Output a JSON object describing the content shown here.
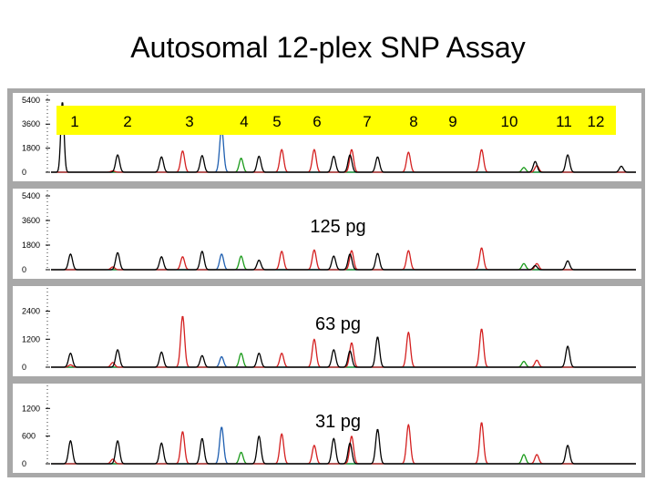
{
  "title": "Autosomal 12-plex SNP Assay",
  "colors": {
    "black": "#000000",
    "red": "#d42020",
    "green": "#1a9a1a",
    "blue": "#1f5fb0",
    "axis_blue": "#2255cc",
    "lane_highlight": "#ffff00",
    "panel_bg": "#a8a8a8"
  },
  "chart_data": {
    "type": "line",
    "x_unit": "relative electrophoretic position (0-100)",
    "locus_labels": [
      "1",
      "2",
      "3",
      "4",
      "5",
      "6",
      "7",
      "8",
      "9",
      "10",
      "11",
      "12"
    ],
    "panels": [
      {
        "label": "",
        "yticks": [
          0,
          1800,
          3600,
          5400
        ],
        "ymax": 5800,
        "series": [
          {
            "color": "black",
            "peaks": [
              [
                3.5,
                5300,
                0.5
              ],
              [
                20.5,
                1300,
                0.6
              ],
              [
                34,
                1150,
                0.6
              ],
              [
                46.5,
                1250,
                0.6
              ],
              [
                64,
                1200,
                0.6
              ],
              [
                87,
                1200,
                0.6
              ],
              [
                92,
                1300,
                0.6
              ],
              [
                100.5,
                1150,
                0.6
              ],
              [
                149,
                800,
                0.6
              ],
              [
                159,
                1300,
                0.6
              ],
              [
                175.5,
                450,
                0.6
              ]
            ]
          },
          {
            "color": "red",
            "peaks": [
              [
                19,
                100,
                0.6
              ],
              [
                40.5,
                1600,
                0.6
              ],
              [
                71,
                1700,
                0.6
              ],
              [
                81,
                1700,
                0.6
              ],
              [
                92.5,
                1700,
                0.6
              ],
              [
                110,
                1500,
                0.6
              ],
              [
                132.5,
                1700,
                0.6
              ],
              [
                149.5,
                500,
                0.6
              ]
            ]
          },
          {
            "color": "green",
            "peaks": [
              [
                58.5,
                1050,
                0.6
              ],
              [
                145.5,
                350,
                0.6
              ]
            ]
          },
          {
            "color": "blue",
            "peaks": [
              [
                52.5,
                3300,
                0.6
              ]
            ]
          }
        ]
      },
      {
        "label": "125 pg",
        "yticks": [
          0,
          1800,
          3600,
          5400
        ],
        "ymax": 5800,
        "series": [
          {
            "color": "black",
            "peaks": [
              [
                6,
                1150,
                0.6
              ],
              [
                20.5,
                1250,
                0.6
              ],
              [
                34,
                950,
                0.6
              ],
              [
                46.5,
                1350,
                0.6
              ],
              [
                64,
                700,
                0.6
              ],
              [
                87,
                1000,
                0.6
              ],
              [
                92,
                1150,
                0.6
              ],
              [
                100.5,
                1200,
                0.6
              ],
              [
                149,
                300,
                0.6
              ],
              [
                159,
                650,
                0.6
              ]
            ]
          },
          {
            "color": "red",
            "peaks": [
              [
                19,
                200,
                0.6
              ],
              [
                40.5,
                950,
                0.6
              ],
              [
                71,
                1350,
                0.6
              ],
              [
                81,
                1450,
                0.6
              ],
              [
                92.5,
                1400,
                0.6
              ],
              [
                110,
                1400,
                0.6
              ],
              [
                132.5,
                1600,
                0.6
              ],
              [
                149.5,
                450,
                0.6
              ]
            ]
          },
          {
            "color": "green",
            "peaks": [
              [
                58.5,
                1000,
                0.6
              ],
              [
                145.5,
                450,
                0.6
              ]
            ]
          },
          {
            "color": "blue",
            "peaks": [
              [
                52.5,
                1150,
                0.6
              ]
            ]
          }
        ]
      },
      {
        "label": "63 pg",
        "yticks": [
          0,
          1200,
          2400
        ],
        "ymax": 3400,
        "series": [
          {
            "color": "black",
            "peaks": [
              [
                6,
                600,
                0.6
              ],
              [
                20.5,
                750,
                0.6
              ],
              [
                34,
                650,
                0.6
              ],
              [
                46.5,
                500,
                0.6
              ],
              [
                64,
                600,
                0.6
              ],
              [
                87,
                750,
                0.6
              ],
              [
                92,
                700,
                0.6
              ],
              [
                100.5,
                1300,
                0.6
              ],
              [
                159,
                900,
                0.6
              ]
            ]
          },
          {
            "color": "red",
            "peaks": [
              [
                6,
                100,
                0.6
              ],
              [
                19,
                200,
                0.6
              ],
              [
                40.5,
                2200,
                0.6
              ],
              [
                71,
                600,
                0.6
              ],
              [
                81,
                1200,
                0.6
              ],
              [
                92.5,
                1050,
                0.6
              ],
              [
                110,
                1500,
                0.6
              ],
              [
                132.5,
                1650,
                0.6
              ],
              [
                149.5,
                300,
                0.6
              ]
            ]
          },
          {
            "color": "green",
            "peaks": [
              [
                58.5,
                600,
                0.6
              ],
              [
                145.5,
                250,
                0.6
              ]
            ]
          },
          {
            "color": "blue",
            "peaks": [
              [
                52.5,
                450,
                0.6
              ]
            ]
          }
        ]
      },
      {
        "label": "31 pg",
        "yticks": [
          0,
          600,
          1200
        ],
        "ymax": 1700,
        "series": [
          {
            "color": "black",
            "peaks": [
              [
                6,
                500,
                0.6
              ],
              [
                20.5,
                500,
                0.6
              ],
              [
                34,
                450,
                0.6
              ],
              [
                46.5,
                550,
                0.6
              ],
              [
                64,
                600,
                0.6
              ],
              [
                87,
                550,
                0.6
              ],
              [
                92,
                450,
                0.6
              ],
              [
                100.5,
                750,
                0.6
              ],
              [
                159,
                400,
                0.6
              ]
            ]
          },
          {
            "color": "red",
            "peaks": [
              [
                19,
                100,
                0.6
              ],
              [
                40.5,
                700,
                0.6
              ],
              [
                71,
                650,
                0.6
              ],
              [
                81,
                400,
                0.6
              ],
              [
                92.5,
                600,
                0.6
              ],
              [
                110,
                850,
                0.6
              ],
              [
                132.5,
                900,
                0.6
              ],
              [
                149.5,
                200,
                0.6
              ]
            ]
          },
          {
            "color": "green",
            "peaks": [
              [
                58.5,
                250,
                0.6
              ],
              [
                145.5,
                200,
                0.6
              ]
            ]
          },
          {
            "color": "blue",
            "peaks": [
              [
                52.5,
                800,
                0.6
              ]
            ]
          }
        ]
      }
    ]
  }
}
